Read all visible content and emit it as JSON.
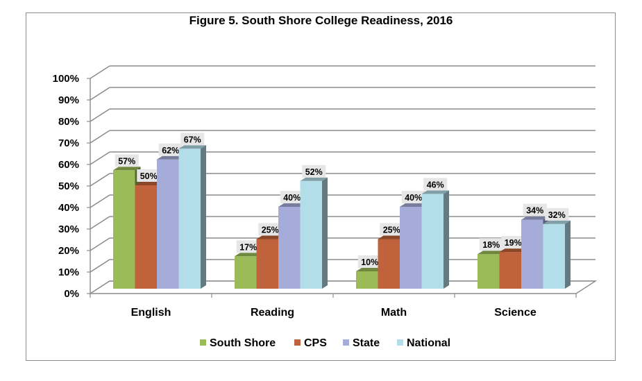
{
  "chart_data": {
    "type": "bar",
    "title": "Figure 5. South Shore College Readiness, 2016",
    "categories": [
      "English",
      "Reading",
      "Math",
      "Science"
    ],
    "series": [
      {
        "name": "South Shore",
        "values": [
          57,
          17,
          10,
          18
        ],
        "color": "#9BBB59"
      },
      {
        "name": "CPS",
        "values": [
          50,
          25,
          25,
          19
        ],
        "color": "#C0623B"
      },
      {
        "name": "State",
        "values": [
          62,
          40,
          40,
          34
        ],
        "color": "#A6ACDA"
      },
      {
        "name": "National",
        "values": [
          67,
          52,
          46,
          32
        ],
        "color": "#B3DDE8"
      }
    ],
    "value_format": "percent",
    "ylim": [
      0,
      100
    ],
    "yticks": [
      "0%",
      "10%",
      "20%",
      "30%",
      "40%",
      "50%",
      "60%",
      "70%",
      "80%",
      "90%",
      "100%"
    ],
    "xlabel": "",
    "ylabel": "",
    "grid": true,
    "legend": "bottom",
    "style": "3d-clustered-column"
  }
}
